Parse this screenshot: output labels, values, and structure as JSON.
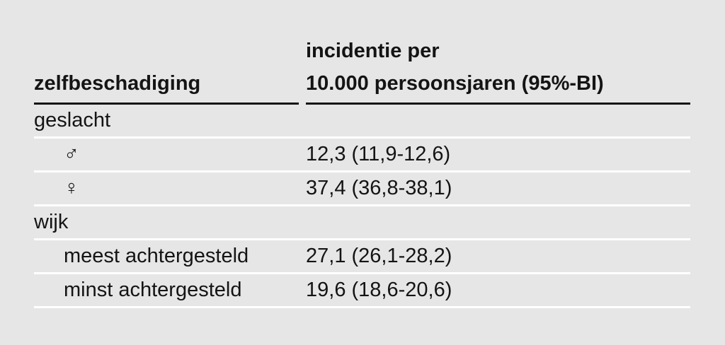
{
  "page": {
    "background_color": "#e6e6e6",
    "text_color": "#141414",
    "header_rule_color": "#141414",
    "row_rule_color": "#ffffff"
  },
  "table": {
    "col1_header": "zelfbeschadiging",
    "col2_header_line1": "incidentie per",
    "col2_header_line2": "10.000 persoonsjaren (95%-BI)",
    "rows": [
      {
        "label": "geslacht",
        "value": "",
        "indent": false
      },
      {
        "label": "♂",
        "value": "12,3 (11,9-12,6)",
        "indent": true
      },
      {
        "label": "♀",
        "value": "37,4 (36,8-38,1)",
        "indent": true
      },
      {
        "label": "wijk",
        "value": "",
        "indent": false
      },
      {
        "label": "meest achtergesteld",
        "value": "27,1 (26,1-28,2)",
        "indent": true
      },
      {
        "label": "minst achtergesteld",
        "value": "19,6 (18,6-20,6)",
        "indent": true
      }
    ]
  }
}
